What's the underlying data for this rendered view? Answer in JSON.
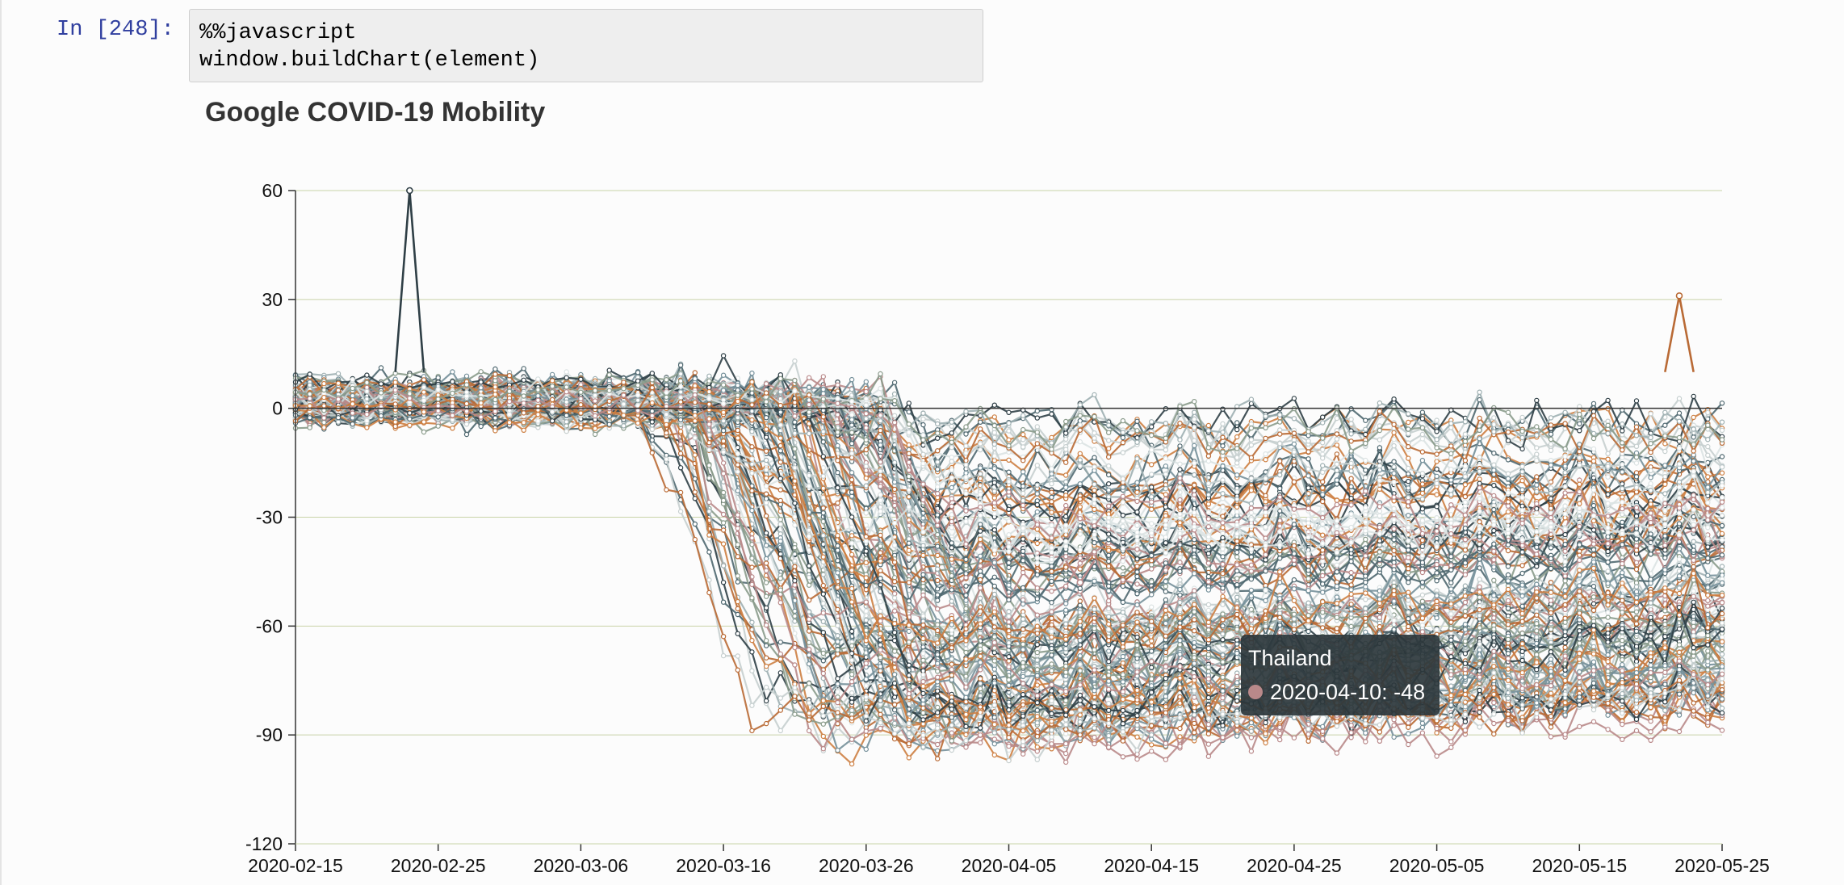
{
  "notebook": {
    "prompt": "In [248]:",
    "code_lines": [
      "%%javascript",
      "window.buildChart(element)"
    ]
  },
  "tooltip": {
    "title": "Thailand",
    "row": "2020-04-10: -48",
    "swatch_color": "#b9898a"
  },
  "palette": [
    "#2f3f46",
    "#4f6870",
    "#75909a",
    "#9fb0b2",
    "#c6cfcf",
    "#dce3e3",
    "#b96a35",
    "#cd7f42",
    "#8a9b8b",
    "#b9898a"
  ],
  "chart_data": {
    "type": "line",
    "title": "Google COVID-19 Mobility",
    "xlabel": "",
    "ylabel": "",
    "x_start": "2020-02-15",
    "x_end": "2020-05-25",
    "x_ticks": [
      "2020-02-15",
      "2020-02-25",
      "2020-03-06",
      "2020-03-16",
      "2020-03-26",
      "2020-04-05",
      "2020-04-15",
      "2020-04-25",
      "2020-05-05",
      "2020-05-15",
      "2020-05-25"
    ],
    "ylim": [
      -120,
      60
    ],
    "y_ticks": [
      "60",
      "30",
      "0",
      "-30",
      "-60",
      "-90",
      "-120"
    ],
    "grid": "horizontal",
    "legend": "none",
    "series_count": 130,
    "highlight_points": [
      {
        "x": "2020-02-23",
        "y": 60
      },
      {
        "x": "2020-05-22",
        "y": 31
      },
      {
        "x": "2020-04-10",
        "y": -48
      }
    ]
  }
}
